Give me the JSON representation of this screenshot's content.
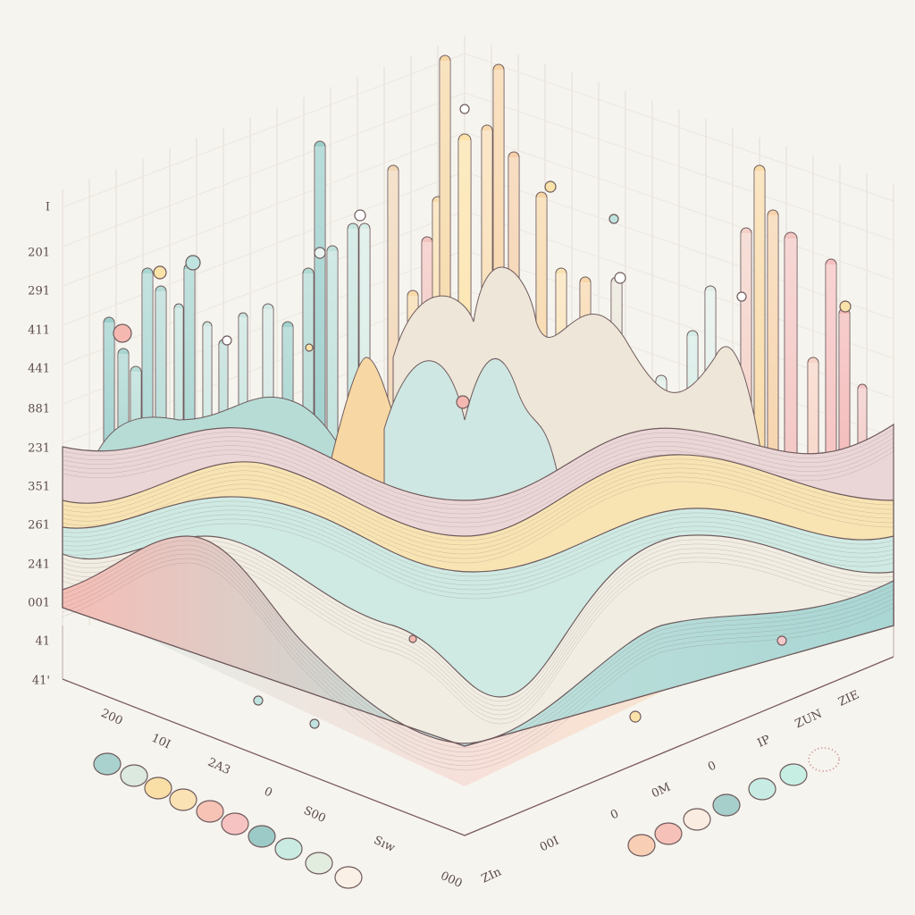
{
  "left_axis": [
    "I",
    "201",
    "291",
    "411",
    "441",
    "881",
    "231",
    "351",
    "261",
    "241",
    "001",
    "41",
    "41'"
  ],
  "left_floor_axis": [
    "200",
    "10I",
    "2A3",
    "0",
    "S00",
    "Sıw",
    "000"
  ],
  "right_floor_axis": [
    "ZIE",
    "ZUN",
    "IP",
    "0",
    "0M",
    "0",
    "00I",
    "ZIn"
  ]
}
